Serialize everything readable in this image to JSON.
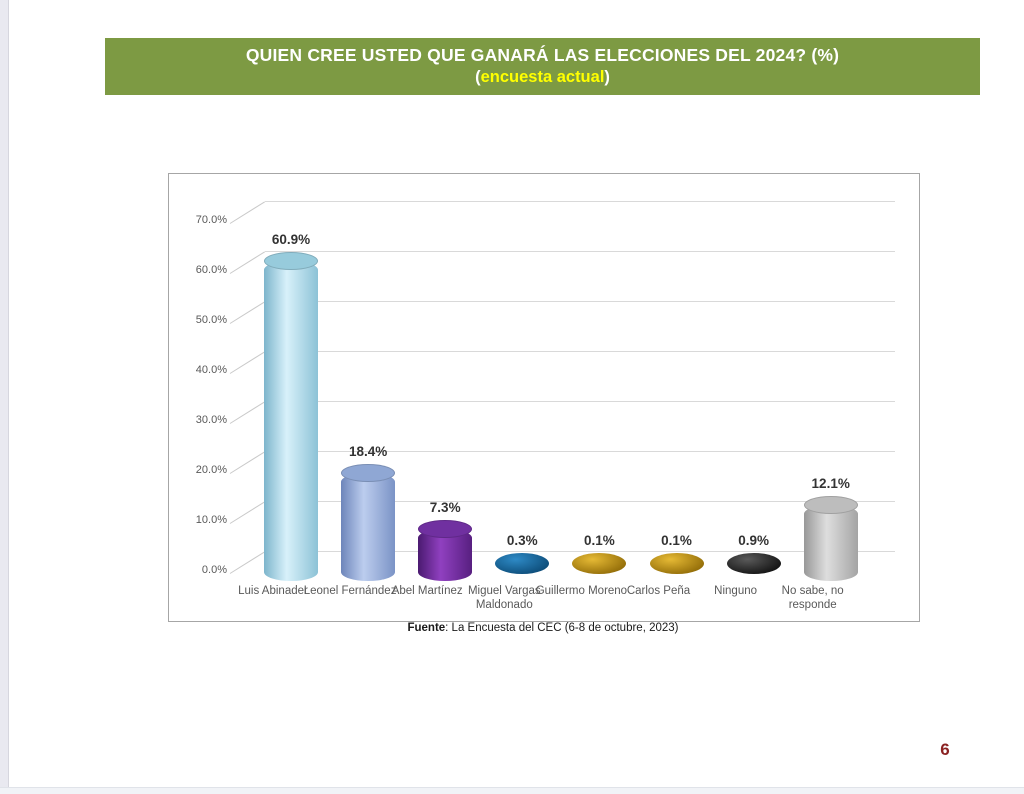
{
  "banner": {
    "bg_color": "#7d9a43",
    "title": "QUIEN CREE USTED QUE GANARÁ LAS ELECCIONES DEL 2024? (%)",
    "subtitle_open": "(",
    "subtitle_highlight": "encuesta actual",
    "subtitle_close": ")",
    "title_color": "#ffffff",
    "highlight_color": "#ffff00"
  },
  "chart_data": {
    "type": "bar",
    "style": "3d-cylinder",
    "title": "",
    "xlabel": "",
    "ylabel": "",
    "categories": [
      "Luis Abinader",
      "Leonel Fernández",
      "Abel Martínez",
      "Miguel Vargas Maldonado",
      "Guillermo Moreno",
      "Carlos Peña",
      "Ninguno",
      "No sabe, no responde"
    ],
    "values": [
      60.9,
      18.4,
      7.3,
      0.3,
      0.1,
      0.1,
      0.9,
      12.1
    ],
    "value_labels": [
      "60.9%",
      "18.4%",
      "7.3%",
      "0.3%",
      "0.1%",
      "0.1%",
      "0.9%",
      "12.1%"
    ],
    "ylim": [
      0,
      70
    ],
    "ytick_step": 10,
    "ytick_labels": [
      "0.0%",
      "10.0%",
      "20.0%",
      "30.0%",
      "40.0%",
      "50.0%",
      "60.0%",
      "70.0%"
    ],
    "grid": true,
    "legend_position": "none",
    "bar_colors": [
      {
        "edge": "#7db5cc",
        "mid": "#d8f1fa",
        "edge2": "#8cc2d6",
        "top": "#97cbdc"
      },
      {
        "edge": "#6d85ba",
        "mid": "#bccdee",
        "edge2": "#7b93c6",
        "top": "#8fa7d4"
      },
      {
        "edge": "#4a1a70",
        "mid": "#9040c0",
        "edge2": "#571f80",
        "top": "#7030a0"
      },
      {
        "disc_light": "#2e8ac6",
        "disc_dark": "#0e4f7c"
      },
      {
        "disc_light": "#e6ba35",
        "disc_dark": "#96700a"
      },
      {
        "disc_light": "#e6ba35",
        "disc_dark": "#96700a"
      },
      {
        "disc_light": "#5a5a5a",
        "disc_dark": "#161616"
      },
      {
        "edge": "#989898",
        "mid": "#dedede",
        "edge2": "#a4a4a4",
        "top": "#bdbdbd"
      }
    ]
  },
  "footer": {
    "source_label": "Fuente",
    "source_rest": ": La Encuesta del CEC (6-8 de octubre, 2023)"
  },
  "page": {
    "number": "6",
    "number_color": "#8b2222"
  }
}
